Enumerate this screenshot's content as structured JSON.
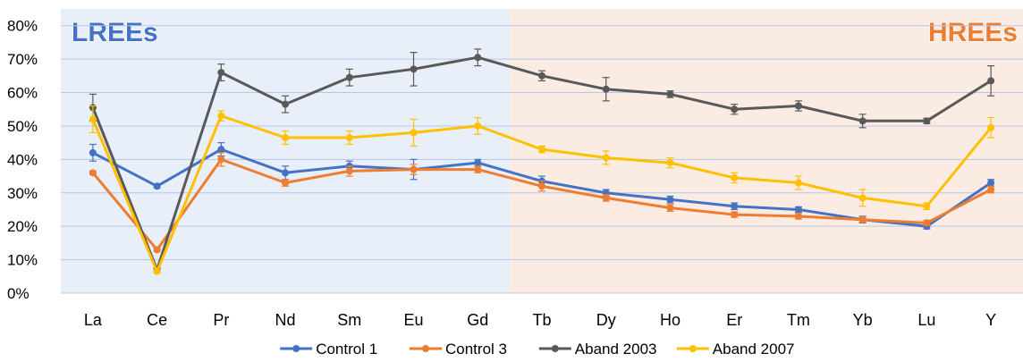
{
  "chart_data": {
    "type": "line",
    "categories": [
      "La",
      "Ce",
      "Pr",
      "Nd",
      "Sm",
      "Eu",
      "Gd",
      "Tb",
      "Dy",
      "Ho",
      "Er",
      "Tm",
      "Yb",
      "Lu",
      "Y"
    ],
    "ylim": [
      0,
      0.85
    ],
    "yticks": [
      0,
      0.1,
      0.2,
      0.3,
      0.4,
      0.5,
      0.6,
      0.7,
      0.8
    ],
    "ytick_labels": [
      "0%",
      "10%",
      "20%",
      "30%",
      "40%",
      "50%",
      "60%",
      "70%",
      "80%"
    ],
    "grid": true,
    "legend_position": "bottom",
    "regions": [
      {
        "label": "LREEs",
        "from": "La",
        "to": "Gd",
        "color": "#e9eff8",
        "label_color": "#4472c4",
        "label_align": "left"
      },
      {
        "label": "HREEs",
        "from": "Tb",
        "to": "Y",
        "color": "#fbece3",
        "label_color": "#ed7d31",
        "label_align": "right"
      }
    ],
    "series": [
      {
        "name": "Control 1",
        "color": "#4472c4",
        "values": [
          0.42,
          0.32,
          0.43,
          0.36,
          0.38,
          0.37,
          0.39,
          0.335,
          0.3,
          0.28,
          0.26,
          0.25,
          0.22,
          0.2,
          0.33
        ],
        "errors": [
          0.025,
          0.005,
          0.02,
          0.02,
          0.015,
          0.03,
          0.01,
          0.015,
          0.01,
          0.01,
          0.01,
          0.008,
          0.01,
          0.008,
          0.01
        ]
      },
      {
        "name": "Control 3",
        "color": "#ed7d31",
        "values": [
          0.36,
          0.13,
          0.4,
          0.33,
          0.365,
          0.37,
          0.37,
          0.32,
          0.285,
          0.255,
          0.235,
          0.23,
          0.22,
          0.21,
          0.31
        ],
        "errors": [
          0.005,
          0.005,
          0.02,
          0.01,
          0.015,
          0.015,
          0.01,
          0.015,
          0.01,
          0.01,
          0.008,
          0.008,
          0.008,
          0.008,
          0.01
        ]
      },
      {
        "name": "Aband 2003",
        "color": "#595959",
        "values": [
          0.555,
          0.07,
          0.66,
          0.565,
          0.645,
          0.67,
          0.705,
          0.65,
          0.61,
          0.595,
          0.55,
          0.56,
          0.515,
          0.515,
          0.635
        ],
        "errors": [
          0.04,
          0.005,
          0.025,
          0.025,
          0.025,
          0.05,
          0.025,
          0.015,
          0.035,
          0.01,
          0.015,
          0.015,
          0.02,
          0.008,
          0.045
        ]
      },
      {
        "name": "Aband 2007",
        "color": "#ffc000",
        "values": [
          0.52,
          0.065,
          0.53,
          0.465,
          0.465,
          0.48,
          0.5,
          0.43,
          0.405,
          0.39,
          0.345,
          0.33,
          0.285,
          0.26,
          0.495
        ],
        "errors": [
          0.04,
          0.005,
          0.015,
          0.02,
          0.02,
          0.04,
          0.025,
          0.01,
          0.02,
          0.015,
          0.015,
          0.02,
          0.025,
          0.01,
          0.03
        ]
      }
    ]
  }
}
